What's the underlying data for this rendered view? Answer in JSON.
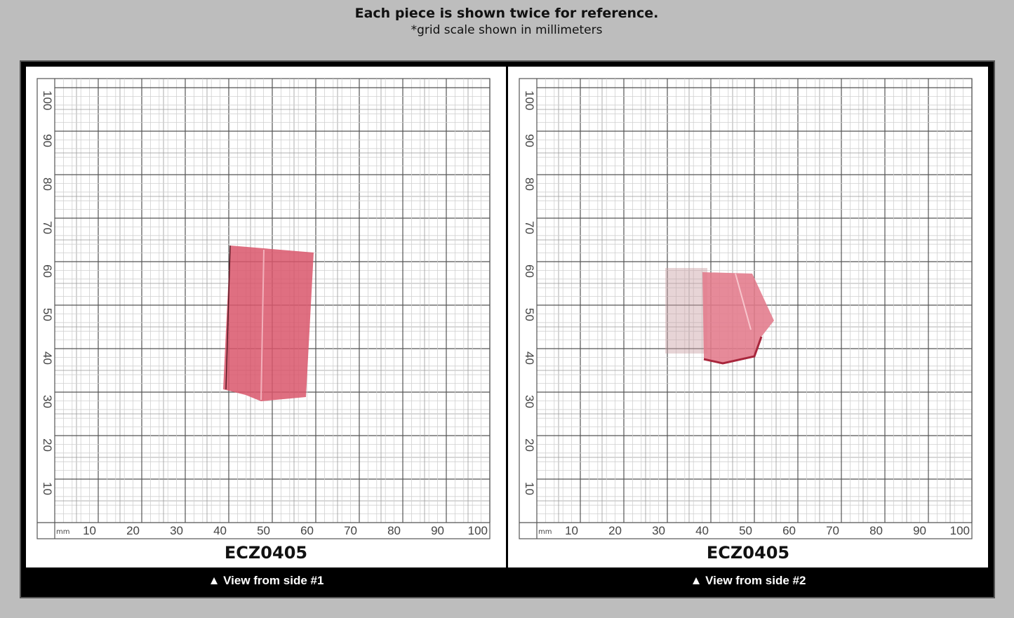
{
  "header": {
    "title": "Each piece is shown twice for reference.",
    "subtitle": "*grid scale shown in millimeters"
  },
  "grid": {
    "unit": "mm",
    "x_labels": [
      "10",
      "20",
      "30",
      "40",
      "50",
      "60",
      "70",
      "80",
      "90",
      "100"
    ],
    "y_labels": [
      "10",
      "20",
      "30",
      "40",
      "50",
      "60",
      "70",
      "80",
      "90",
      "100"
    ]
  },
  "panels": [
    {
      "label": "ECZ0405",
      "caption": "▲ View from side #1"
    },
    {
      "label": "ECZ0405",
      "caption": "▲ View from side #2"
    }
  ]
}
